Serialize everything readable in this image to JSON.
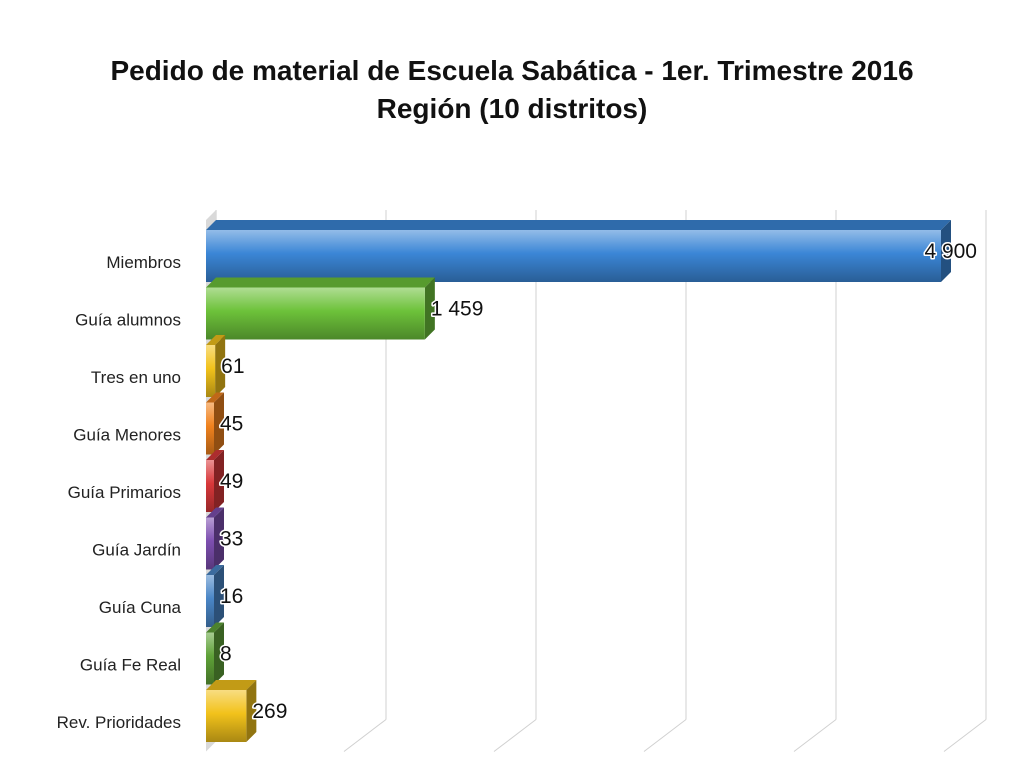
{
  "chart_data": {
    "type": "bar",
    "orientation": "horizontal",
    "title": "Pedido de material de Escuela Sabática - 1er. Trimestre 2016",
    "subtitle": "Región (10 distritos)",
    "categories": [
      "Miembros",
      "Guía alumnos",
      "Tres en uno",
      "Guía Menores",
      "Guía Primarios",
      "Guía Jardín",
      "Guía Cuna",
      "Guía Fe Real",
      "Rev. Prioridades"
    ],
    "values": [
      4900,
      1459,
      61,
      45,
      49,
      33,
      16,
      8,
      269
    ],
    "value_labels": [
      "4 900",
      "1 459",
      "61",
      "45",
      "49",
      "33",
      "16",
      "8",
      "269"
    ],
    "colors": [
      "#3b86d6",
      "#6dc23a",
      "#f2c21b",
      "#f0821e",
      "#d8383a",
      "#7d4fb0",
      "#4a86c6",
      "#5fa238",
      "#f2c21b"
    ],
    "xlim": [
      0,
      5000
    ],
    "grid": true,
    "legend": "none"
  }
}
